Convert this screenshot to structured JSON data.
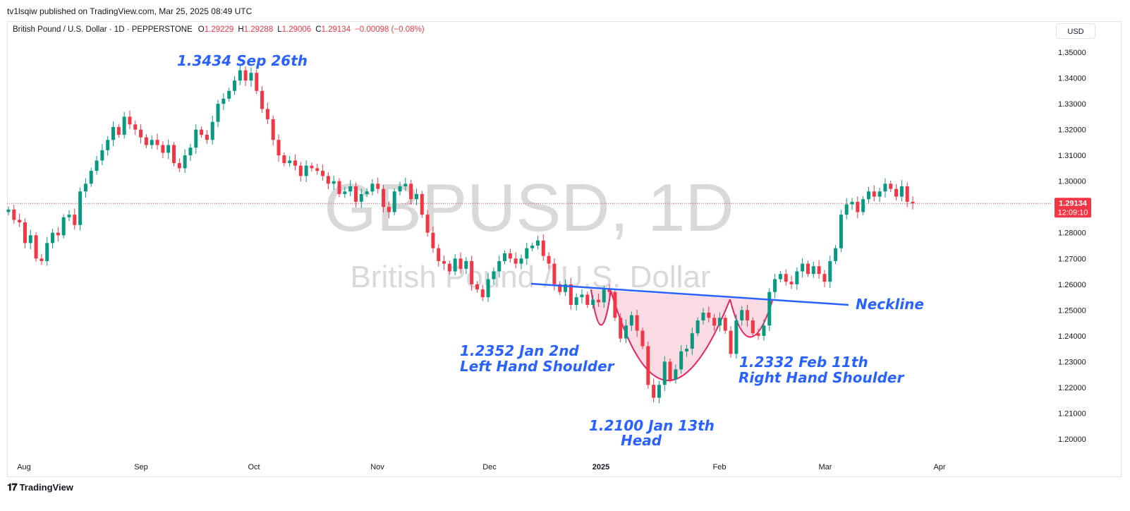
{
  "publisher": "tv1lsqiw published on TradingView.com, Mar 25, 2025 08:49 UTC",
  "header": {
    "symbol": "British Pound / U.S. Dollar · 1D · PEPPERSTONE",
    "o_label": "O",
    "o_value": "1.29229",
    "h_label": "H",
    "h_value": "1.29288",
    "l_label": "L",
    "l_value": "1.29006",
    "c_label": "C",
    "c_value": "1.29134",
    "change": "−0.00098 (−0.08%)"
  },
  "currency_button": "USD",
  "watermark": {
    "ticker": "GBPUSD, 1D",
    "name": "British Pound / U.S. Dollar"
  },
  "price_tag": {
    "price": "1.29134",
    "countdown": "12:09:10"
  },
  "footer": {
    "brand": "TradingView",
    "logo_icon": "tradingview-logo-icon"
  },
  "colors": {
    "up": "#089981",
    "down": "#f23645",
    "annotation": "#2962ff",
    "pattern_fill": "#f8cdd9",
    "pattern_stroke": "#e91e63"
  },
  "chart_data": {
    "type": "candlestick",
    "symbol": "GBPUSD",
    "interval": "1D",
    "ylim": [
      1.195,
      1.357
    ],
    "y_ticks": [
      "1.35000",
      "1.34000",
      "1.33000",
      "1.32000",
      "1.31000",
      "1.30000",
      "1.29000",
      "1.28000",
      "1.27000",
      "1.26000",
      "1.25000",
      "1.24000",
      "1.23000",
      "1.22000",
      "1.21000",
      "1.20000"
    ],
    "x_ticks": [
      "Aug",
      "Sep",
      "Oct",
      "Nov",
      "Dec",
      "2025",
      "Feb",
      "Mar",
      "Apr"
    ],
    "last_price": 1.29134,
    "close_series": [
      1.289,
      1.285,
      1.284,
      1.276,
      1.279,
      1.27,
      1.269,
      1.276,
      1.28,
      1.279,
      1.286,
      1.287,
      1.283,
      1.296,
      1.299,
      1.304,
      1.308,
      1.312,
      1.316,
      1.321,
      1.318,
      1.325,
      1.322,
      1.32,
      1.317,
      1.314,
      1.316,
      1.314,
      1.311,
      1.314,
      1.307,
      1.305,
      1.31,
      1.313,
      1.32,
      1.318,
      1.316,
      1.323,
      1.33,
      1.332,
      1.335,
      1.339,
      1.343,
      1.339,
      1.342,
      1.335,
      1.328,
      1.324,
      1.316,
      1.31,
      1.307,
      1.308,
      1.306,
      1.302,
      1.306,
      1.305,
      1.304,
      1.302,
      1.299,
      1.3,
      1.295,
      1.296,
      1.298,
      1.292,
      1.295,
      1.296,
      1.299,
      1.297,
      1.29,
      1.288,
      1.296,
      1.298,
      1.299,
      1.293,
      1.295,
      1.287,
      1.28,
      1.274,
      1.269,
      1.268,
      1.265,
      1.27,
      1.266,
      1.269,
      1.26,
      1.258,
      1.255,
      1.262,
      1.265,
      1.269,
      1.272,
      1.27,
      1.268,
      1.27,
      1.274,
      1.275,
      1.277,
      1.271,
      1.268,
      1.26,
      1.257,
      1.26,
      1.252,
      1.255,
      1.256,
      1.252,
      1.254,
      1.253,
      1.258,
      1.257,
      1.247,
      1.239,
      1.244,
      1.248,
      1.242,
      1.236,
      1.221,
      1.216,
      1.221,
      1.23,
      1.223,
      1.227,
      1.234,
      1.235,
      1.241,
      1.246,
      1.249,
      1.247,
      1.244,
      1.247,
      1.242,
      1.233,
      1.246,
      1.25,
      1.246,
      1.241,
      1.24,
      1.244,
      1.257,
      1.262,
      1.264,
      1.261,
      1.26,
      1.265,
      1.268,
      1.264,
      1.267,
      1.264,
      1.261,
      1.269,
      1.274,
      1.287,
      1.291,
      1.292,
      1.288,
      1.293,
      1.296,
      1.294,
      1.296,
      1.299,
      1.297,
      1.294,
      1.298,
      1.292,
      1.2914
    ],
    "patterns": [
      {
        "name": "inverse head and shoulders",
        "neckline_start": 1.2605,
        "neckline_end": 1.252
      }
    ],
    "annotations": [
      {
        "text": "1.3434 Sep 26th",
        "price": 1.3434
      },
      {
        "text": "Neckline"
      },
      {
        "text": "1.2352 Jan 2nd",
        "text2": "Left Hand Shoulder",
        "price": 1.2352
      },
      {
        "text": "1.2100 Jan 13th",
        "text2": "Head",
        "price": 1.21
      },
      {
        "text": "1.2332 Feb 11th",
        "text2": "Right Hand Shoulder",
        "price": 1.2332
      }
    ]
  }
}
